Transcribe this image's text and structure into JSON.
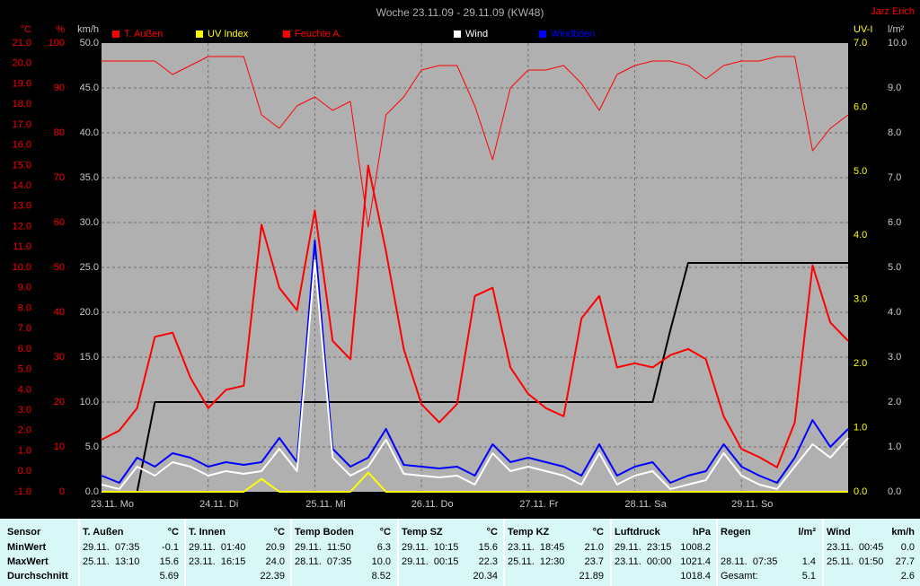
{
  "chart_data": {
    "type": "line",
    "title": "Woche 23.11.09 - 29.11.09 (KW48)",
    "author": "Jarz Erich",
    "xlim": [
      0,
      7
    ],
    "xticks": [
      {
        "value": 0,
        "label": "23.11. Mo"
      },
      {
        "value": 1,
        "label": "24.11. Di"
      },
      {
        "value": 2,
        "label": "25.11. Mi"
      },
      {
        "value": 3,
        "label": "26.11. Do"
      },
      {
        "value": 4,
        "label": "27.11. Fr"
      },
      {
        "value": 5,
        "label": "28.11. Sa"
      },
      {
        "value": 6,
        "label": "29.11. So"
      }
    ],
    "grid_axis": 2,
    "axes": [
      {
        "label": "°C",
        "color": "#ff0000",
        "side": "left",
        "lim": [
          -1,
          21
        ],
        "ticks": [
          {
            "value": -1,
            "label": "-1.0"
          },
          {
            "value": 0,
            "label": "0.0"
          },
          {
            "value": 1,
            "label": "1.0"
          },
          {
            "value": 2,
            "label": "2.0"
          },
          {
            "value": 3,
            "label": "3.0"
          },
          {
            "value": 4,
            "label": "4.0"
          },
          {
            "value": 5,
            "label": "5.0"
          },
          {
            "value": 6,
            "label": "6.0"
          },
          {
            "value": 7,
            "label": "7.0"
          },
          {
            "value": 8,
            "label": "8.0"
          },
          {
            "value": 9,
            "label": "9.0"
          },
          {
            "value": 10,
            "label": "10.0"
          },
          {
            "value": 11,
            "label": "11.0"
          },
          {
            "value": 12,
            "label": "12.0"
          },
          {
            "value": 13,
            "label": "13.0"
          },
          {
            "value": 14,
            "label": "14.0"
          },
          {
            "value": 15,
            "label": "15.0"
          },
          {
            "value": 16,
            "label": "16.0"
          },
          {
            "value": 17,
            "label": "17.0"
          },
          {
            "value": 18,
            "label": "18.0"
          },
          {
            "value": 19,
            "label": "19.0"
          },
          {
            "value": 20,
            "label": "20.0"
          },
          {
            "value": 21,
            "label": "21.0"
          }
        ]
      },
      {
        "label": "%",
        "color": "#ff0000",
        "side": "left",
        "lim": [
          0,
          100
        ],
        "ticks": [
          0,
          10,
          20,
          30,
          40,
          50,
          60,
          70,
          80,
          90,
          100
        ]
      },
      {
        "label": "km/h",
        "color": "#c8c8c8",
        "side": "left",
        "lim": [
          0,
          50
        ],
        "ticks": [
          {
            "value": 0,
            "label": "0.0"
          },
          {
            "value": 5,
            "label": "5.0"
          },
          {
            "value": 10,
            "label": "10.0"
          },
          {
            "value": 15,
            "label": "15.0"
          },
          {
            "value": 20,
            "label": "20.0"
          },
          {
            "value": 25,
            "label": "25.0"
          },
          {
            "value": 30,
            "label": "30.0"
          },
          {
            "value": 35,
            "label": "35.0"
          },
          {
            "value": 40,
            "label": "40.0"
          },
          {
            "value": 45,
            "label": "45.0"
          },
          {
            "value": 50,
            "label": "50.0"
          }
        ]
      },
      {
        "label": "UV-I",
        "color": "#ffff00",
        "side": "right",
        "lim": [
          0,
          7
        ],
        "ticks": [
          {
            "value": 0,
            "label": "0.0"
          },
          {
            "value": 1,
            "label": "1.0"
          },
          {
            "value": 2,
            "label": "2.0"
          },
          {
            "value": 3,
            "label": "3.0"
          },
          {
            "value": 4,
            "label": "4.0"
          },
          {
            "value": 5,
            "label": "5.0"
          },
          {
            "value": 6,
            "label": "6.0"
          },
          {
            "value": 7,
            "label": "7.0"
          }
        ]
      },
      {
        "label": "l/m²",
        "color": "#c8c8c8",
        "side": "right",
        "lim": [
          0,
          10
        ],
        "ticks": [
          {
            "value": 0,
            "label": "0.0"
          },
          {
            "value": 1,
            "label": "1.0"
          },
          {
            "value": 2,
            "label": "2.0"
          },
          {
            "value": 3,
            "label": "3.0"
          },
          {
            "value": 4,
            "label": "4.0"
          },
          {
            "value": 5,
            "label": "5.0"
          },
          {
            "value": 6,
            "label": "6.0"
          },
          {
            "value": 7,
            "label": "7.0"
          },
          {
            "value": 8,
            "label": "8.0"
          },
          {
            "value": 9,
            "label": "9.0"
          },
          {
            "value": 10,
            "label": "10.0"
          }
        ]
      }
    ],
    "series": [
      {
        "name": "T. Außen",
        "color": "#ff0000",
        "axis": 0,
        "width": 2,
        "values": [
          1.55,
          2.0,
          3.1,
          6.6,
          6.8,
          4.6,
          3.1,
          4.0,
          4.2,
          12.1,
          9.0,
          7.9,
          12.8,
          6.4,
          5.5,
          15.0,
          10.8,
          6.0,
          3.3,
          2.4,
          3.3,
          8.6,
          9.0,
          5.1,
          3.8,
          3.1,
          2.7,
          7.5,
          8.6,
          5.1,
          5.3,
          5.1,
          5.7,
          6.0,
          5.5,
          2.7,
          1.1,
          0.7,
          0.2,
          2.4,
          10.1,
          7.3,
          6.4
        ]
      },
      {
        "name": "UV Index",
        "color": "#ffff00",
        "axis": 3,
        "width": 2,
        "values": [
          0,
          0,
          0,
          0,
          0,
          0,
          0,
          0,
          0,
          0.2,
          0,
          0,
          0,
          0,
          0,
          0.3,
          0,
          0,
          0,
          0,
          0,
          0,
          0,
          0,
          0,
          0,
          0,
          0,
          0,
          0,
          0,
          0,
          0,
          0,
          0,
          0,
          0,
          0,
          0,
          0,
          0,
          0,
          0
        ]
      },
      {
        "name": "Feuchte A.",
        "color": "#ff0000",
        "axis": 1,
        "width": 1,
        "values": [
          96,
          96,
          96,
          96,
          93,
          95,
          97,
          97,
          97,
          84,
          81,
          86,
          88,
          85,
          87,
          59,
          84,
          88,
          94,
          95,
          95,
          86,
          74,
          90,
          94,
          94,
          95,
          91,
          85,
          93,
          95,
          96,
          96,
          95,
          92,
          95,
          96,
          96,
          97,
          97,
          76,
          81,
          84
        ]
      },
      {
        "name": "Regen",
        "color": "#000000",
        "axis": 4,
        "width": 2,
        "values": [
          0,
          0,
          0,
          2.0,
          2.0,
          2.0,
          2.0,
          2.0,
          2.0,
          2.0,
          2.0,
          2.0,
          2.0,
          2.0,
          2.0,
          2.0,
          2.0,
          2.0,
          2.0,
          2.0,
          2.0,
          2.0,
          2.0,
          2.0,
          2.0,
          2.0,
          2.0,
          2.0,
          2.0,
          2.0,
          2.0,
          2.0,
          3.6,
          5.1,
          5.1,
          5.1,
          5.1,
          5.1,
          5.1,
          5.1,
          5.1,
          5.1,
          5.1
        ]
      },
      {
        "name": "Wind",
        "color": "#ffffff",
        "axis": 2,
        "width": 2,
        "values": [
          0.8,
          0.3,
          2.8,
          1.8,
          3.3,
          2.8,
          1.8,
          2.3,
          2.0,
          2.3,
          4.8,
          2.3,
          25.8,
          3.8,
          1.8,
          2.8,
          5.8,
          2.0,
          1.8,
          1.6,
          1.8,
          0.8,
          4.3,
          2.3,
          2.8,
          2.3,
          1.8,
          0.8,
          4.3,
          0.8,
          1.8,
          2.3,
          0.3,
          0.8,
          1.3,
          4.3,
          1.8,
          0.8,
          0.3,
          2.8,
          5.3,
          3.8,
          6.0
        ]
      },
      {
        "name": "Windböen",
        "color": "#0000ff",
        "axis": 2,
        "width": 2,
        "values": [
          1.8,
          1.0,
          3.8,
          2.8,
          4.3,
          3.8,
          2.8,
          3.3,
          3.0,
          3.3,
          6.0,
          3.3,
          28.0,
          4.8,
          2.8,
          3.8,
          7.0,
          3.0,
          2.8,
          2.6,
          2.8,
          1.8,
          5.3,
          3.3,
          3.8,
          3.3,
          2.8,
          1.8,
          5.3,
          1.8,
          2.8,
          3.3,
          1.0,
          1.8,
          2.3,
          5.3,
          2.8,
          1.8,
          1.0,
          3.8,
          8.0,
          5.0,
          7.0
        ]
      }
    ]
  },
  "table": {
    "header": "Sensor",
    "columns": [
      {
        "name": "T. Außen",
        "unit": "°C"
      },
      {
        "name": "T. Innen",
        "unit": "°C"
      },
      {
        "name": "Temp Boden",
        "unit": "°C"
      },
      {
        "name": "Temp SZ",
        "unit": "°C"
      },
      {
        "name": "Temp KZ",
        "unit": "°C"
      },
      {
        "name": "Luftdruck",
        "unit": "hPa"
      },
      {
        "name": "Regen",
        "unit": "l/m²"
      },
      {
        "name": "Wind",
        "unit": "km/h"
      }
    ],
    "rows": [
      {
        "label": "MinWert",
        "cells": [
          {
            "time": "29.11.  07:35",
            "value": "-0.1"
          },
          {
            "time": "29.11.  01:40",
            "value": "20.9"
          },
          {
            "time": "29.11.  11:50",
            "value": "6.3"
          },
          {
            "time": "29.11.  10:15",
            "value": "15.6"
          },
          {
            "time": "23.11.  18:45",
            "value": "21.0"
          },
          {
            "time": "29.11.  23:15",
            "value": "1008.2"
          },
          {},
          {
            "time": "23.11.  00:45",
            "value": "0.0"
          }
        ]
      },
      {
        "label": "MaxWert",
        "cells": [
          {
            "time": "25.11.  13:10",
            "value": "15.6"
          },
          {
            "time": "23.11.  16:15",
            "value": "24.0"
          },
          {
            "time": "28.11.  07:35",
            "value": "10.0"
          },
          {
            "time": "29.11.  00:15",
            "value": "22.3"
          },
          {
            "time": "25.11.  12:30",
            "value": "23.7"
          },
          {
            "time": "23.11.  00:00",
            "value": "1021.4"
          },
          {
            "time": "28.11.  07:35",
            "value": "1.4"
          },
          {
            "time": "25.11.  01:50",
            "value": "27.7"
          }
        ]
      },
      {
        "label": "Durchschnitt",
        "cells": [
          {
            "value": "5.69"
          },
          {
            "value": "22.39"
          },
          {
            "value": "8.52"
          },
          {
            "value": "20.34"
          },
          {
            "value": "21.89"
          },
          {
            "value": "1018.4"
          },
          {
            "time": "Gesamt:",
            "value": "5.1"
          },
          {
            "value": "2.6"
          }
        ]
      }
    ]
  }
}
